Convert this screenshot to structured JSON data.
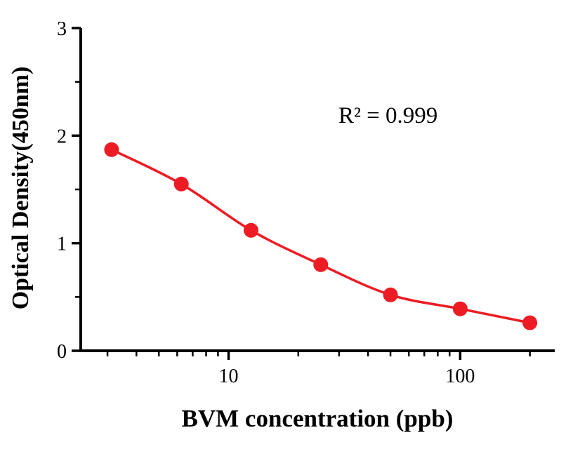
{
  "chart_data": {
    "type": "scatter",
    "x": [
      3.125,
      6.25,
      12.5,
      25,
      50,
      100,
      200
    ],
    "y": [
      1.87,
      1.55,
      1.12,
      0.8,
      0.52,
      0.39,
      0.26
    ],
    "xlabel": "BVM concentration (ppb)",
    "ylabel": "Optical Density(450nm)",
    "annotation": "R² = 0.999",
    "xscale": "log",
    "xlim": [
      2.3,
      256
    ],
    "ylim": [
      0,
      3
    ],
    "x_major_ticks": [
      10,
      100
    ],
    "x_major_tick_labels": [
      "10",
      "100"
    ],
    "x_minor_ticks": [
      3,
      4,
      5,
      6,
      7,
      8,
      9,
      20,
      30,
      40,
      50,
      60,
      70,
      80,
      90,
      200
    ],
    "y_major_ticks": [
      0,
      1,
      2,
      3
    ],
    "y_major_tick_labels": [
      "0",
      "1",
      "2",
      "3"
    ],
    "y_minor_ticks": [
      0.5,
      1.5,
      2.5
    ],
    "grid": false,
    "legend": false,
    "marker": "circle",
    "line_color": "#ed1c24",
    "marker_color": "#ed1c24",
    "axis_color": "#000000",
    "background": "#ffffff"
  }
}
